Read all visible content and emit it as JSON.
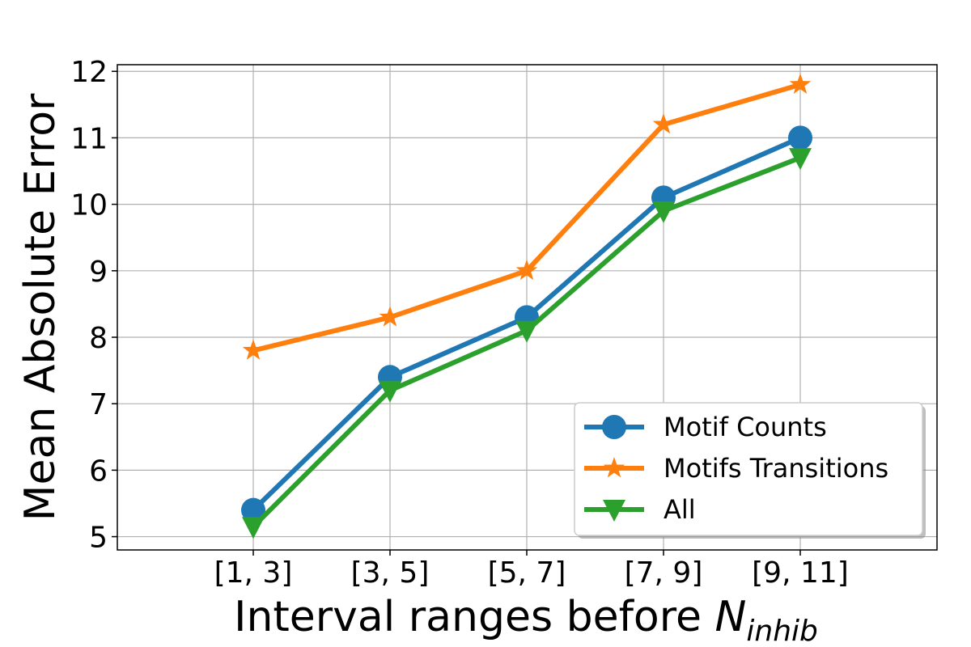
{
  "chart_data": {
    "type": "line",
    "categories": [
      "[1, 3]",
      "[3, 5]",
      "[5, 7]",
      "[7, 9]",
      "[9, 11]"
    ],
    "xlabel": {
      "main": "Interval ranges before ",
      "symbol": "N",
      "subscript": "inhib"
    },
    "ylabel": "Mean Absolute Error",
    "ylim": [
      4.8,
      12.1
    ],
    "yticks": [
      5,
      6,
      7,
      8,
      9,
      10,
      11,
      12
    ],
    "grid": true,
    "legend_position": "lower-right",
    "series": [
      {
        "name": "Motif Counts",
        "values": [
          5.4,
          7.4,
          8.3,
          10.1,
          11.0
        ],
        "color": "#1f77b4",
        "marker": "circle"
      },
      {
        "name": "Motifs Transitions",
        "values": [
          7.8,
          8.3,
          9.0,
          11.2,
          11.8
        ],
        "color": "#ff7f0e",
        "marker": "star"
      },
      {
        "name": "All",
        "values": [
          5.15,
          7.2,
          8.1,
          9.9,
          10.7
        ],
        "color": "#2ca02c",
        "marker": "triangle-down"
      }
    ]
  }
}
